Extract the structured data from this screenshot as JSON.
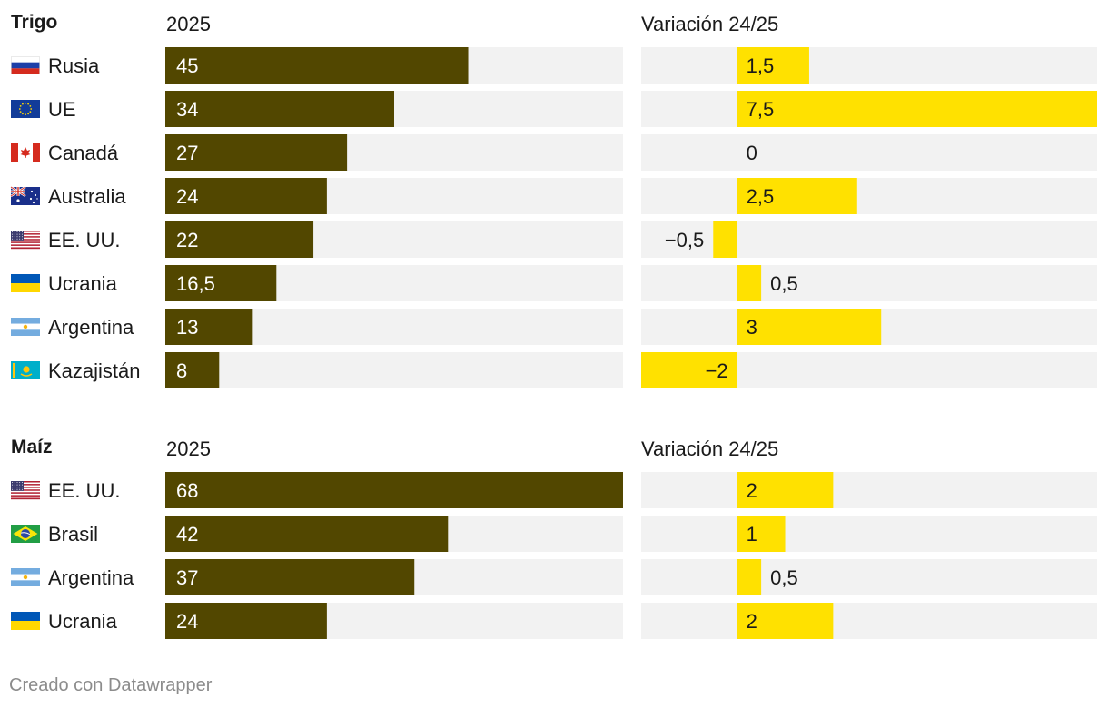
{
  "colors": {
    "track": "#f2f2f2",
    "main_bar": "#524700",
    "change_bar": "#ffe100",
    "text": "#1a1a1a",
    "footer": "#8c8c8c"
  },
  "chart_data": [
    {
      "type": "bar",
      "title": "Trigo",
      "value_header": "2025",
      "change_header": "Variación 24/25",
      "xlim": [
        0,
        68
      ],
      "change_lim": [
        -2,
        7.5
      ],
      "rows": [
        {
          "country": "Rusia",
          "flag": "flag-russia",
          "value": 45,
          "value_label": "45",
          "change": 1.5,
          "change_label": "1,5"
        },
        {
          "country": "UE",
          "flag": "flag-eu",
          "value": 34,
          "value_label": "34",
          "change": 7.5,
          "change_label": "7,5"
        },
        {
          "country": "Canadá",
          "flag": "flag-canada",
          "value": 27,
          "value_label": "27",
          "change": 0,
          "change_label": "0"
        },
        {
          "country": "Australia",
          "flag": "flag-australia",
          "value": 24,
          "value_label": "24",
          "change": 2.5,
          "change_label": "2,5"
        },
        {
          "country": "EE. UU.",
          "flag": "flag-usa",
          "value": 22,
          "value_label": "22",
          "change": -0.5,
          "change_label": "−0,5"
        },
        {
          "country": "Ucrania",
          "flag": "flag-ukraine",
          "value": 16.5,
          "value_label": "16,5",
          "change": 0.5,
          "change_label": "0,5"
        },
        {
          "country": "Argentina",
          "flag": "flag-argentina",
          "value": 13,
          "value_label": "13",
          "change": 3,
          "change_label": "3"
        },
        {
          "country": "Kazajistán",
          "flag": "flag-kazakhstan",
          "value": 8,
          "value_label": "8",
          "change": -2,
          "change_label": "−2"
        }
      ]
    },
    {
      "type": "bar",
      "title": "Maíz",
      "value_header": "2025",
      "change_header": "Variación 24/25",
      "xlim": [
        0,
        68
      ],
      "change_lim": [
        -2,
        7.5
      ],
      "rows": [
        {
          "country": "EE. UU.",
          "flag": "flag-usa",
          "value": 68,
          "value_label": "68",
          "change": 2,
          "change_label": "2"
        },
        {
          "country": "Brasil",
          "flag": "flag-brazil",
          "value": 42,
          "value_label": "42",
          "change": 1,
          "change_label": "1"
        },
        {
          "country": "Argentina",
          "flag": "flag-argentina",
          "value": 37,
          "value_label": "37",
          "change": 0.5,
          "change_label": "0,5"
        },
        {
          "country": "Ucrania",
          "flag": "flag-ukraine",
          "value": 24,
          "value_label": "24",
          "change": 2,
          "change_label": "2"
        }
      ]
    }
  ],
  "footer": "Creado con Datawrapper"
}
